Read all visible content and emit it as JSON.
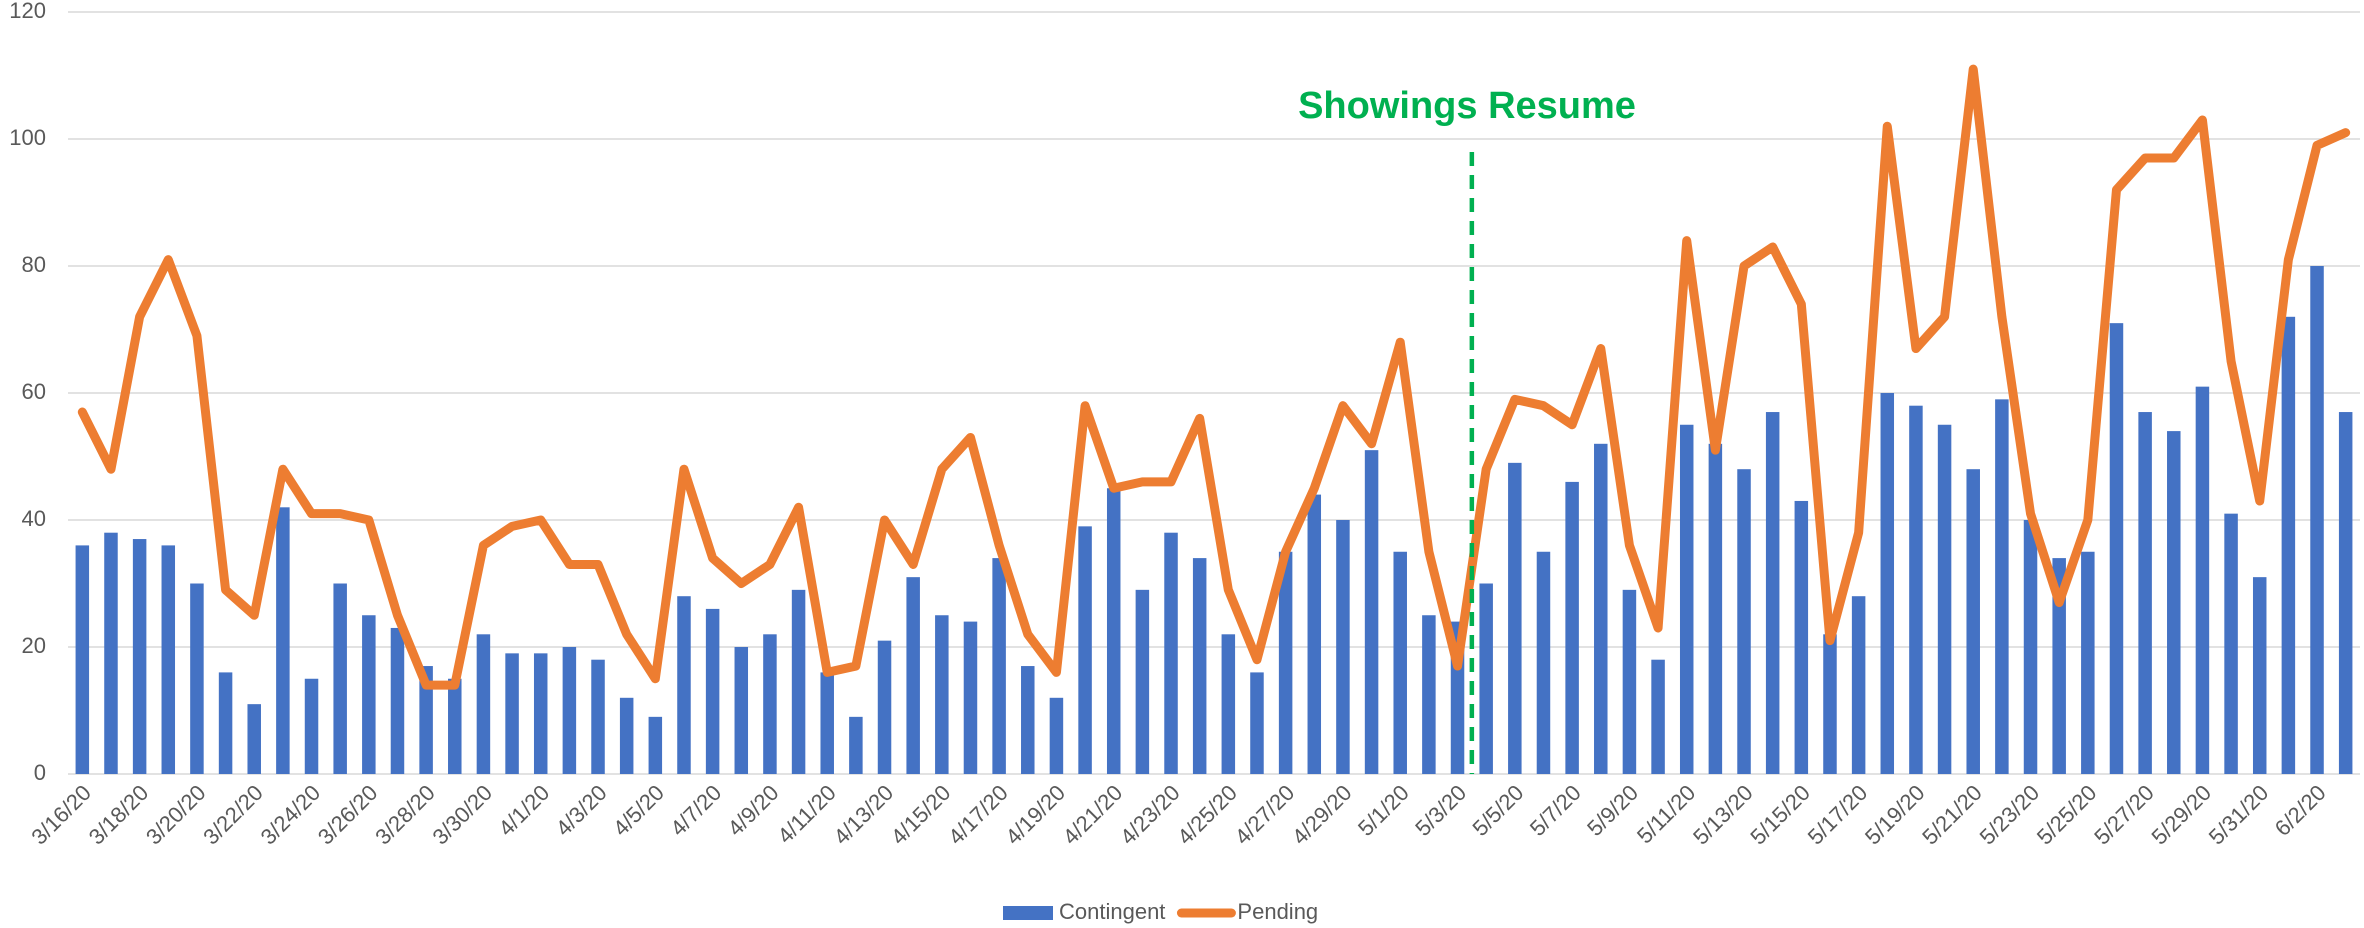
{
  "chart_data": {
    "type": "bar_line",
    "annotation": "Showings Resume",
    "categories": [
      "3/16/20",
      null,
      "3/18/20",
      null,
      "3/20/20",
      null,
      "3/22/20",
      null,
      "3/24/20",
      null,
      "3/26/20",
      null,
      "3/28/20",
      null,
      "3/30/20",
      null,
      "4/1/20",
      null,
      "4/3/20",
      null,
      "4/5/20",
      null,
      "4/7/20",
      null,
      "4/9/20",
      null,
      "4/11/20",
      null,
      "4/13/20",
      null,
      "4/15/20",
      null,
      "4/17/20",
      null,
      "4/19/20",
      null,
      "4/21/20",
      null,
      "4/23/20",
      null,
      "4/25/20",
      null,
      "4/27/20",
      null,
      "4/29/20",
      null,
      "5/1/20",
      null,
      "5/3/20",
      null,
      "5/5/20",
      null,
      "5/7/20",
      null,
      "5/9/20",
      null,
      "5/11/20",
      null,
      "5/13/20",
      null,
      "5/15/20",
      null,
      "5/17/20",
      null,
      "5/19/20",
      null,
      "5/21/20",
      null,
      "5/23/20",
      null,
      "5/25/20",
      null,
      "5/27/20",
      null,
      "5/29/20",
      null,
      "5/31/20",
      null,
      "6/2/20",
      null
    ],
    "series": [
      {
        "name": "Contingent",
        "type": "bar",
        "color": "#4472c4",
        "values": [
          36,
          38,
          37,
          36,
          30,
          16,
          11,
          42,
          15,
          30,
          25,
          23,
          17,
          15,
          22,
          19,
          19,
          20,
          18,
          12,
          9,
          28,
          26,
          20,
          22,
          29,
          16,
          9,
          21,
          31,
          25,
          24,
          34,
          17,
          12,
          39,
          45,
          29,
          38,
          34,
          22,
          16,
          35,
          44,
          40,
          51,
          35,
          25,
          24,
          30,
          49,
          35,
          46,
          52,
          29,
          18,
          55,
          52,
          48,
          57,
          43,
          22,
          28,
          60,
          58,
          55,
          48,
          59,
          40,
          34,
          35,
          71,
          57,
          54,
          61,
          41,
          31,
          72,
          80,
          57
        ]
      },
      {
        "name": "Pending",
        "type": "line",
        "color": "#ed7d31",
        "values": [
          57,
          48,
          72,
          81,
          69,
          29,
          25,
          48,
          41,
          41,
          40,
          25,
          14,
          14,
          36,
          39,
          40,
          33,
          33,
          22,
          15,
          48,
          34,
          30,
          33,
          42,
          16,
          17,
          40,
          33,
          48,
          53,
          36,
          22,
          16,
          58,
          45,
          46,
          46,
          56,
          29,
          18,
          35,
          45,
          58,
          52,
          68,
          35,
          17,
          48,
          59,
          58,
          55,
          67,
          36,
          23,
          84,
          51,
          80,
          83,
          74,
          21,
          38,
          102,
          67,
          72,
          111,
          72,
          41,
          27,
          40,
          92,
          97,
          97,
          103,
          65,
          43,
          81,
          99,
          101
        ]
      }
    ],
    "ylim": [
      0,
      120
    ],
    "yticks": [
      0,
      20,
      40,
      60,
      80,
      100,
      120
    ],
    "grid": true,
    "legend": "bottom"
  }
}
